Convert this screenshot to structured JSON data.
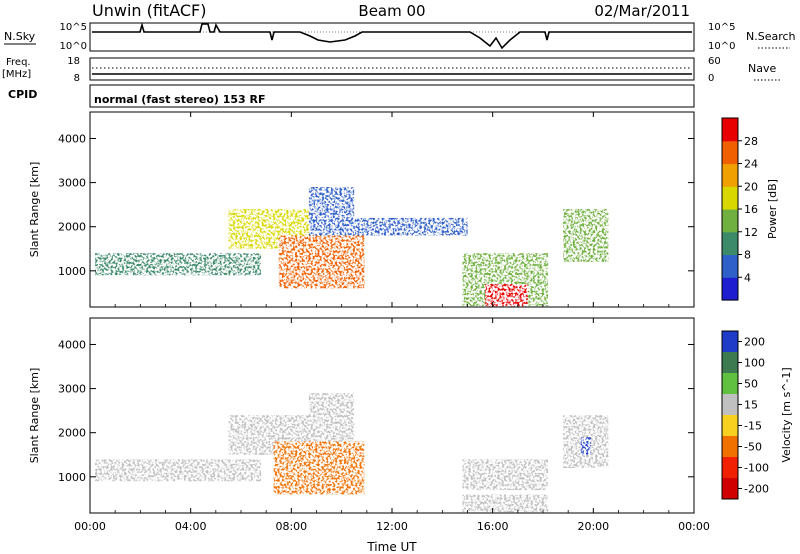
{
  "header": {
    "station": "Unwin (fitACF)",
    "beam": "Beam 00",
    "date": "02/Mar/2011"
  },
  "top_panels": {
    "nsky_label": "N.Sky",
    "nsky_ticks": [
      "10^5",
      "10^0"
    ],
    "nsearch_label": "N.Search",
    "nsearch_ticks": [
      "10^5",
      "10^0"
    ],
    "freq_label": "Freq.",
    "freq_unit": "[MHz]",
    "freq_ticks": [
      "18",
      "8"
    ],
    "nave_label": "Nave",
    "nave_ticks": [
      "60",
      "0"
    ],
    "cpid_label": "CPID",
    "cpid_value": "normal (fast stereo) 153 RF"
  },
  "chart_data": [
    {
      "type": "heatmap",
      "name": "Power",
      "xlabel": "Time UT",
      "ylabel": "Slant Range [km]",
      "x_ticks": [
        "00:00",
        "04:00",
        "08:00",
        "12:00",
        "16:00",
        "20:00",
        "00:00"
      ],
      "xlim_hours": [
        0,
        24
      ],
      "y_ticks": [
        1000,
        2000,
        3000,
        4000
      ],
      "ylim_km": [
        180,
        4600
      ],
      "colorbar": {
        "label": "Power [dB]",
        "ticks": [
          "4",
          "8",
          "12",
          "16",
          "20",
          "24",
          "28"
        ],
        "range": [
          0,
          30
        ]
      },
      "echo_regions": [
        {
          "t": [
            0.2,
            6.8
          ],
          "r": [
            900,
            1400
          ],
          "value": 9
        },
        {
          "t": [
            5.5,
            8.8
          ],
          "r": [
            1500,
            2400
          ],
          "value": 18
        },
        {
          "t": [
            7.5,
            10.9
          ],
          "r": [
            600,
            1800
          ],
          "value": 24
        },
        {
          "t": [
            8.7,
            10.5
          ],
          "r": [
            1800,
            2900
          ],
          "value": 6
        },
        {
          "t": [
            10.5,
            15.0
          ],
          "r": [
            1800,
            2200
          ],
          "value": 6
        },
        {
          "t": [
            14.8,
            18.2
          ],
          "r": [
            200,
            1400
          ],
          "value": 14
        },
        {
          "t": [
            15.7,
            17.4
          ],
          "r": [
            200,
            700
          ],
          "value": 27
        },
        {
          "t": [
            18.8,
            20.6
          ],
          "r": [
            1200,
            2400
          ],
          "value": 12
        }
      ]
    },
    {
      "type": "heatmap",
      "name": "Velocity",
      "xlabel": "Time UT",
      "ylabel": "Slant Range [km]",
      "x_ticks": [
        "00:00",
        "04:00",
        "08:00",
        "12:00",
        "16:00",
        "20:00",
        "00:00"
      ],
      "xlim_hours": [
        0,
        24
      ],
      "y_ticks": [
        1000,
        2000,
        3000,
        4000
      ],
      "ylim_km": [
        180,
        4600
      ],
      "colorbar": {
        "label": "Velocity [m s^-1]",
        "ticks": [
          "200",
          "100",
          "50",
          "15",
          "-15",
          "-50",
          "-100",
          "-200"
        ],
        "range": [
          -250,
          250
        ]
      },
      "echo_regions": [
        {
          "t": [
            0.2,
            6.8
          ],
          "r": [
            900,
            1400
          ],
          "value": 0
        },
        {
          "t": [
            5.5,
            8.8
          ],
          "r": [
            1500,
            2400
          ],
          "value": 0
        },
        {
          "t": [
            7.3,
            10.9
          ],
          "r": [
            600,
            1800
          ],
          "value": -120
        },
        {
          "t": [
            8.7,
            10.5
          ],
          "r": [
            1800,
            2900
          ],
          "value": 0
        },
        {
          "t": [
            14.8,
            18.2
          ],
          "r": [
            700,
            1400
          ],
          "value": 0
        },
        {
          "t": [
            14.8,
            18.2
          ],
          "r": [
            200,
            600
          ],
          "value": 40
        },
        {
          "t": [
            18.8,
            20.6
          ],
          "r": [
            1200,
            2400
          ],
          "value": 60
        },
        {
          "t": [
            19.5,
            19.9
          ],
          "r": [
            1500,
            1900
          ],
          "value": 220
        }
      ]
    }
  ],
  "colors": {
    "power_scale": [
      "#1e1ed0",
      "#2f5fc8",
      "#3d8a6a",
      "#70b040",
      "#d8d800",
      "#f0a000",
      "#f06000",
      "#e80000"
    ],
    "velocity_scale": [
      "#1e3cc8",
      "#3d7a50",
      "#60c040",
      "#c0c0c0",
      "#f8d020",
      "#f07000",
      "#f02000",
      "#d00000"
    ]
  }
}
